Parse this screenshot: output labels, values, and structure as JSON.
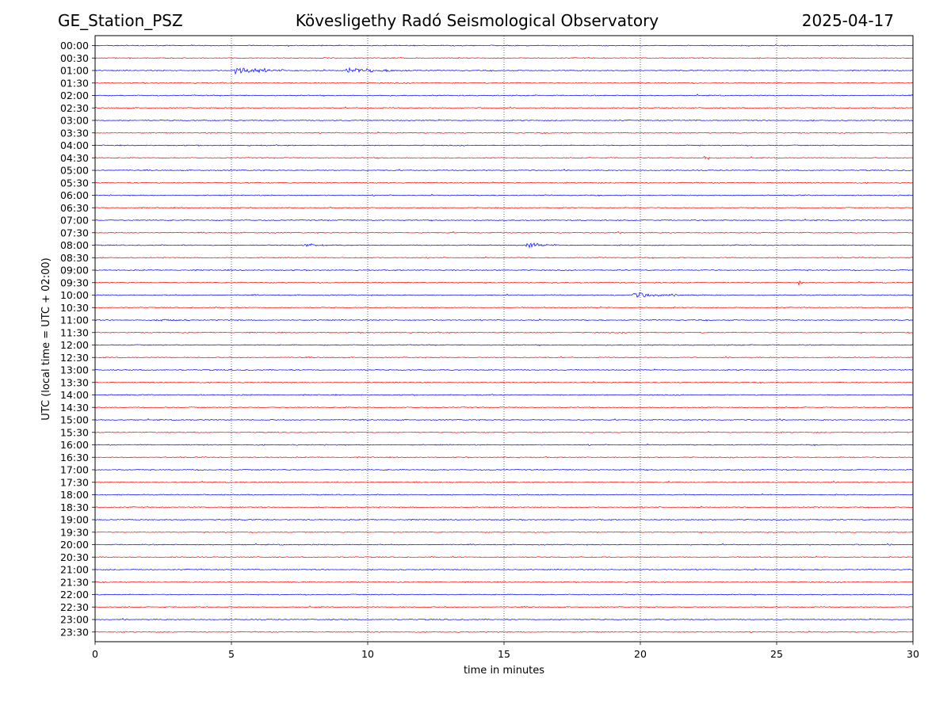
{
  "header": {
    "station": "GE_Station_PSZ",
    "observatory": "Kövesligethy Radó Seismological Observatory",
    "date": "2025-04-17"
  },
  "chart_data": {
    "type": "line",
    "title": "Kövesligethy Radó Seismological Observatory",
    "xlabel": "time in minutes",
    "ylabel": "UTC (local time = UTC + 02:00)",
    "xlim": [
      0,
      30
    ],
    "x_ticks": [
      "0",
      "5",
      "10",
      "15",
      "20",
      "25",
      "30"
    ],
    "grid": "vertical dotted lines at 5-minute intervals",
    "colors": {
      "even_rows": "#0000ff",
      "odd_rows": "#ff0000"
    },
    "rows": [
      "00:00",
      "00:30",
      "01:00",
      "01:30",
      "02:00",
      "02:30",
      "03:00",
      "03:30",
      "04:00",
      "04:30",
      "05:00",
      "05:30",
      "06:00",
      "06:30",
      "07:00",
      "07:30",
      "08:00",
      "08:30",
      "09:00",
      "09:30",
      "10:00",
      "10:30",
      "11:00",
      "11:30",
      "12:00",
      "12:30",
      "13:00",
      "13:30",
      "14:00",
      "14:30",
      "15:00",
      "15:30",
      "16:00",
      "16:30",
      "17:00",
      "17:30",
      "18:00",
      "18:30",
      "19:00",
      "19:30",
      "20:00",
      "20:30",
      "21:00",
      "21:30",
      "22:00",
      "22:30",
      "23:00",
      "23:30"
    ],
    "events": [
      {
        "row": "01:00",
        "start_min": 5.1,
        "end_min": 7.5,
        "amplitude": "large"
      },
      {
        "row": "01:00",
        "start_min": 9.2,
        "end_min": 12.3,
        "amplitude": "medium"
      },
      {
        "row": "04:30",
        "start_min": 22.3,
        "end_min": 23.2,
        "amplitude": "small"
      },
      {
        "row": "08:00",
        "start_min": 7.7,
        "end_min": 8.7,
        "amplitude": "small"
      },
      {
        "row": "08:00",
        "start_min": 15.8,
        "end_min": 17.2,
        "amplitude": "medium"
      },
      {
        "row": "09:30",
        "start_min": 25.8,
        "end_min": 26.1,
        "amplitude": "medium"
      },
      {
        "row": "10:00",
        "start_min": 19.7,
        "end_min": 22.0,
        "amplitude": "medium"
      },
      {
        "row": "11:00",
        "start_min": 2.3,
        "end_min": 3.6,
        "amplitude": "small"
      }
    ]
  }
}
